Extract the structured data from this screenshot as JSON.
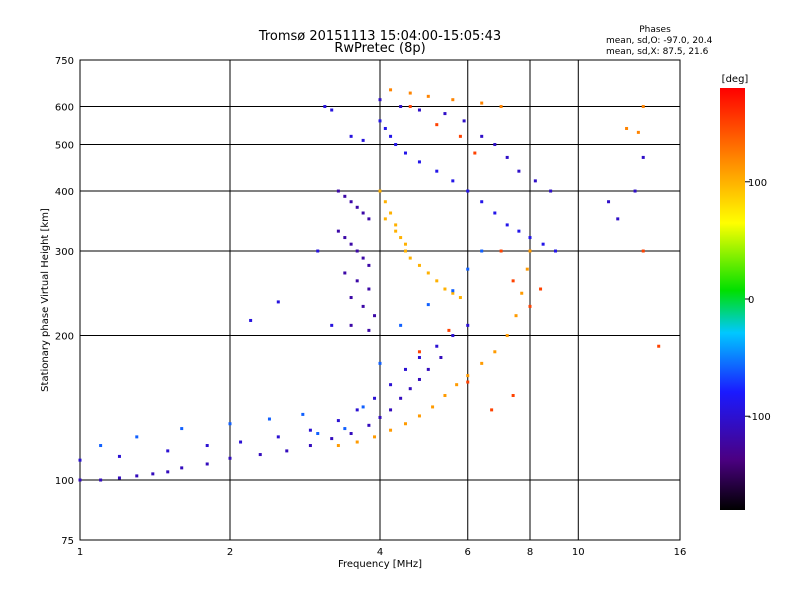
{
  "chart_data": {
    "type": "scatter",
    "title": "Tromsø 20151113 15:04:00-15:05:43",
    "subtitle": "RwPretec (8p)",
    "xlabel": "Frequency [MHz]",
    "ylabel": "Stationary phase Virtual Height [km]",
    "x_scale": "log",
    "y_scale": "log",
    "xlim": [
      1,
      16
    ],
    "ylim": [
      75,
      750
    ],
    "x_ticks": [
      "1",
      "2",
      "4",
      "6",
      "8",
      "10",
      "16"
    ],
    "x_tick_values": [
      1,
      2,
      4,
      6,
      8,
      10,
      16
    ],
    "y_ticks": [
      "75",
      "100",
      "200",
      "300",
      "400",
      "500",
      "600",
      "750"
    ],
    "y_tick_values": [
      75,
      100,
      200,
      300,
      400,
      500,
      600,
      750
    ],
    "grid": true,
    "phases_box": {
      "title": "Phases",
      "line_o": "mean, sd,O: -97.0, 20.4",
      "line_x": "mean, sd,X:  87.5, 21.6"
    },
    "colorbar": {
      "label": "[deg]",
      "range": [
        -180,
        180
      ],
      "ticks": [
        "100",
        "0",
        "-100"
      ],
      "tick_values": [
        100,
        0,
        -100
      ]
    },
    "traces": [
      {
        "phase": -110,
        "points": [
          [
            1.0,
            100
          ],
          [
            1.1,
            100
          ],
          [
            1.2,
            101
          ],
          [
            1.3,
            102
          ],
          [
            1.4,
            103
          ],
          [
            1.5,
            104
          ],
          [
            1.6,
            106
          ],
          [
            1.8,
            108
          ],
          [
            2.0,
            111
          ],
          [
            2.3,
            113
          ],
          [
            2.6,
            115
          ],
          [
            2.9,
            118
          ],
          [
            3.2,
            122
          ],
          [
            3.5,
            125
          ],
          [
            3.8,
            130
          ],
          [
            4.0,
            135
          ],
          [
            4.2,
            140
          ],
          [
            4.4,
            148
          ],
          [
            4.6,
            155
          ],
          [
            4.8,
            162
          ],
          [
            5.0,
            170
          ],
          [
            5.3,
            180
          ]
        ]
      },
      {
        "phase": 110,
        "points": [
          [
            3.3,
            118
          ],
          [
            3.6,
            120
          ],
          [
            3.9,
            123
          ],
          [
            4.2,
            127
          ],
          [
            4.5,
            131
          ],
          [
            4.8,
            136
          ],
          [
            5.1,
            142
          ],
          [
            5.4,
            150
          ],
          [
            5.7,
            158
          ],
          [
            6.0,
            165
          ],
          [
            6.4,
            175
          ],
          [
            6.8,
            185
          ],
          [
            7.2,
            200
          ],
          [
            7.5,
            220
          ],
          [
            7.7,
            245
          ],
          [
            7.9,
            275
          ],
          [
            8.0,
            300
          ]
        ]
      },
      {
        "phase": -100,
        "points": [
          [
            1.0,
            110
          ],
          [
            1.2,
            112
          ],
          [
            1.5,
            115
          ],
          [
            1.8,
            118
          ],
          [
            2.1,
            120
          ],
          [
            2.5,
            123
          ],
          [
            2.9,
            127
          ],
          [
            3.3,
            133
          ],
          [
            3.6,
            140
          ],
          [
            3.9,
            148
          ],
          [
            4.2,
            158
          ],
          [
            4.5,
            170
          ],
          [
            4.8,
            180
          ],
          [
            5.2,
            190
          ],
          [
            5.6,
            200
          ],
          [
            6.0,
            210
          ]
        ]
      },
      {
        "phase": -120,
        "points": [
          [
            3.3,
            400
          ],
          [
            3.4,
            390
          ],
          [
            3.5,
            380
          ],
          [
            3.6,
            370
          ],
          [
            3.7,
            360
          ],
          [
            3.8,
            350
          ],
          [
            3.3,
            330
          ],
          [
            3.4,
            320
          ],
          [
            3.5,
            310
          ],
          [
            3.6,
            300
          ],
          [
            3.7,
            290
          ],
          [
            3.8,
            280
          ],
          [
            3.4,
            270
          ],
          [
            3.6,
            260
          ],
          [
            3.8,
            250
          ],
          [
            3.5,
            240
          ],
          [
            3.7,
            230
          ],
          [
            3.9,
            220
          ],
          [
            3.5,
            210
          ],
          [
            3.8,
            205
          ]
        ]
      },
      {
        "phase": 100,
        "points": [
          [
            4.0,
            400
          ],
          [
            4.1,
            380
          ],
          [
            4.2,
            360
          ],
          [
            4.3,
            340
          ],
          [
            4.4,
            320
          ],
          [
            4.5,
            300
          ],
          [
            4.6,
            290
          ],
          [
            4.8,
            280
          ],
          [
            5.0,
            270
          ],
          [
            5.2,
            260
          ],
          [
            5.4,
            250
          ],
          [
            5.6,
            245
          ],
          [
            5.8,
            240
          ],
          [
            4.1,
            350
          ],
          [
            4.3,
            330
          ],
          [
            4.5,
            310
          ]
        ]
      },
      {
        "phase": -90,
        "points": [
          [
            4.0,
            560
          ],
          [
            4.1,
            540
          ],
          [
            4.2,
            520
          ],
          [
            4.3,
            500
          ],
          [
            4.5,
            480
          ],
          [
            4.8,
            460
          ],
          [
            5.2,
            440
          ],
          [
            5.6,
            420
          ],
          [
            6.0,
            400
          ],
          [
            6.4,
            380
          ],
          [
            6.8,
            360
          ],
          [
            7.2,
            340
          ],
          [
            7.6,
            330
          ],
          [
            8.0,
            320
          ],
          [
            8.5,
            310
          ],
          [
            9.0,
            300
          ]
        ]
      },
      {
        "phase": -95,
        "points": [
          [
            3.1,
            600
          ],
          [
            3.2,
            590
          ],
          [
            3.5,
            520
          ],
          [
            3.7,
            510
          ],
          [
            2.2,
            215
          ],
          [
            2.5,
            235
          ],
          [
            3.0,
            300
          ],
          [
            3.2,
            210
          ]
        ]
      },
      {
        "phase": 120,
        "points": [
          [
            4.2,
            650
          ],
          [
            4.6,
            640
          ],
          [
            5.0,
            630
          ],
          [
            5.6,
            620
          ],
          [
            6.4,
            610
          ],
          [
            7.0,
            600
          ],
          [
            12.5,
            540
          ],
          [
            13.2,
            530
          ],
          [
            13.5,
            600
          ]
        ]
      },
      {
        "phase": -105,
        "points": [
          [
            4.0,
            620
          ],
          [
            4.4,
            600
          ],
          [
            4.8,
            590
          ],
          [
            5.4,
            580
          ],
          [
            5.9,
            560
          ],
          [
            6.4,
            520
          ],
          [
            6.8,
            500
          ],
          [
            7.2,
            470
          ],
          [
            7.6,
            440
          ],
          [
            8.2,
            420
          ],
          [
            8.8,
            400
          ],
          [
            11.5,
            380
          ],
          [
            12.0,
            350
          ],
          [
            13.0,
            400
          ],
          [
            13.5,
            470
          ]
        ]
      },
      {
        "phase": 150,
        "points": [
          [
            4.6,
            600
          ],
          [
            5.2,
            550
          ],
          [
            5.8,
            520
          ],
          [
            6.2,
            480
          ],
          [
            7.0,
            300
          ],
          [
            7.4,
            260
          ],
          [
            8.0,
            230
          ],
          [
            8.4,
            250
          ],
          [
            13.5,
            300
          ],
          [
            14.5,
            190
          ],
          [
            4.8,
            185
          ],
          [
            5.5,
            205
          ],
          [
            6.0,
            160
          ],
          [
            6.7,
            140
          ],
          [
            7.4,
            150
          ]
        ]
      },
      {
        "phase": -60,
        "points": [
          [
            1.1,
            118
          ],
          [
            1.3,
            123
          ],
          [
            1.6,
            128
          ],
          [
            2.0,
            131
          ],
          [
            2.4,
            134
          ],
          [
            2.8,
            137
          ],
          [
            3.0,
            125
          ],
          [
            3.4,
            128
          ],
          [
            3.7,
            142
          ],
          [
            4.0,
            175
          ],
          [
            4.4,
            210
          ],
          [
            5.0,
            232
          ],
          [
            5.6,
            248
          ],
          [
            6.0,
            275
          ],
          [
            6.4,
            300
          ]
        ]
      }
    ]
  }
}
